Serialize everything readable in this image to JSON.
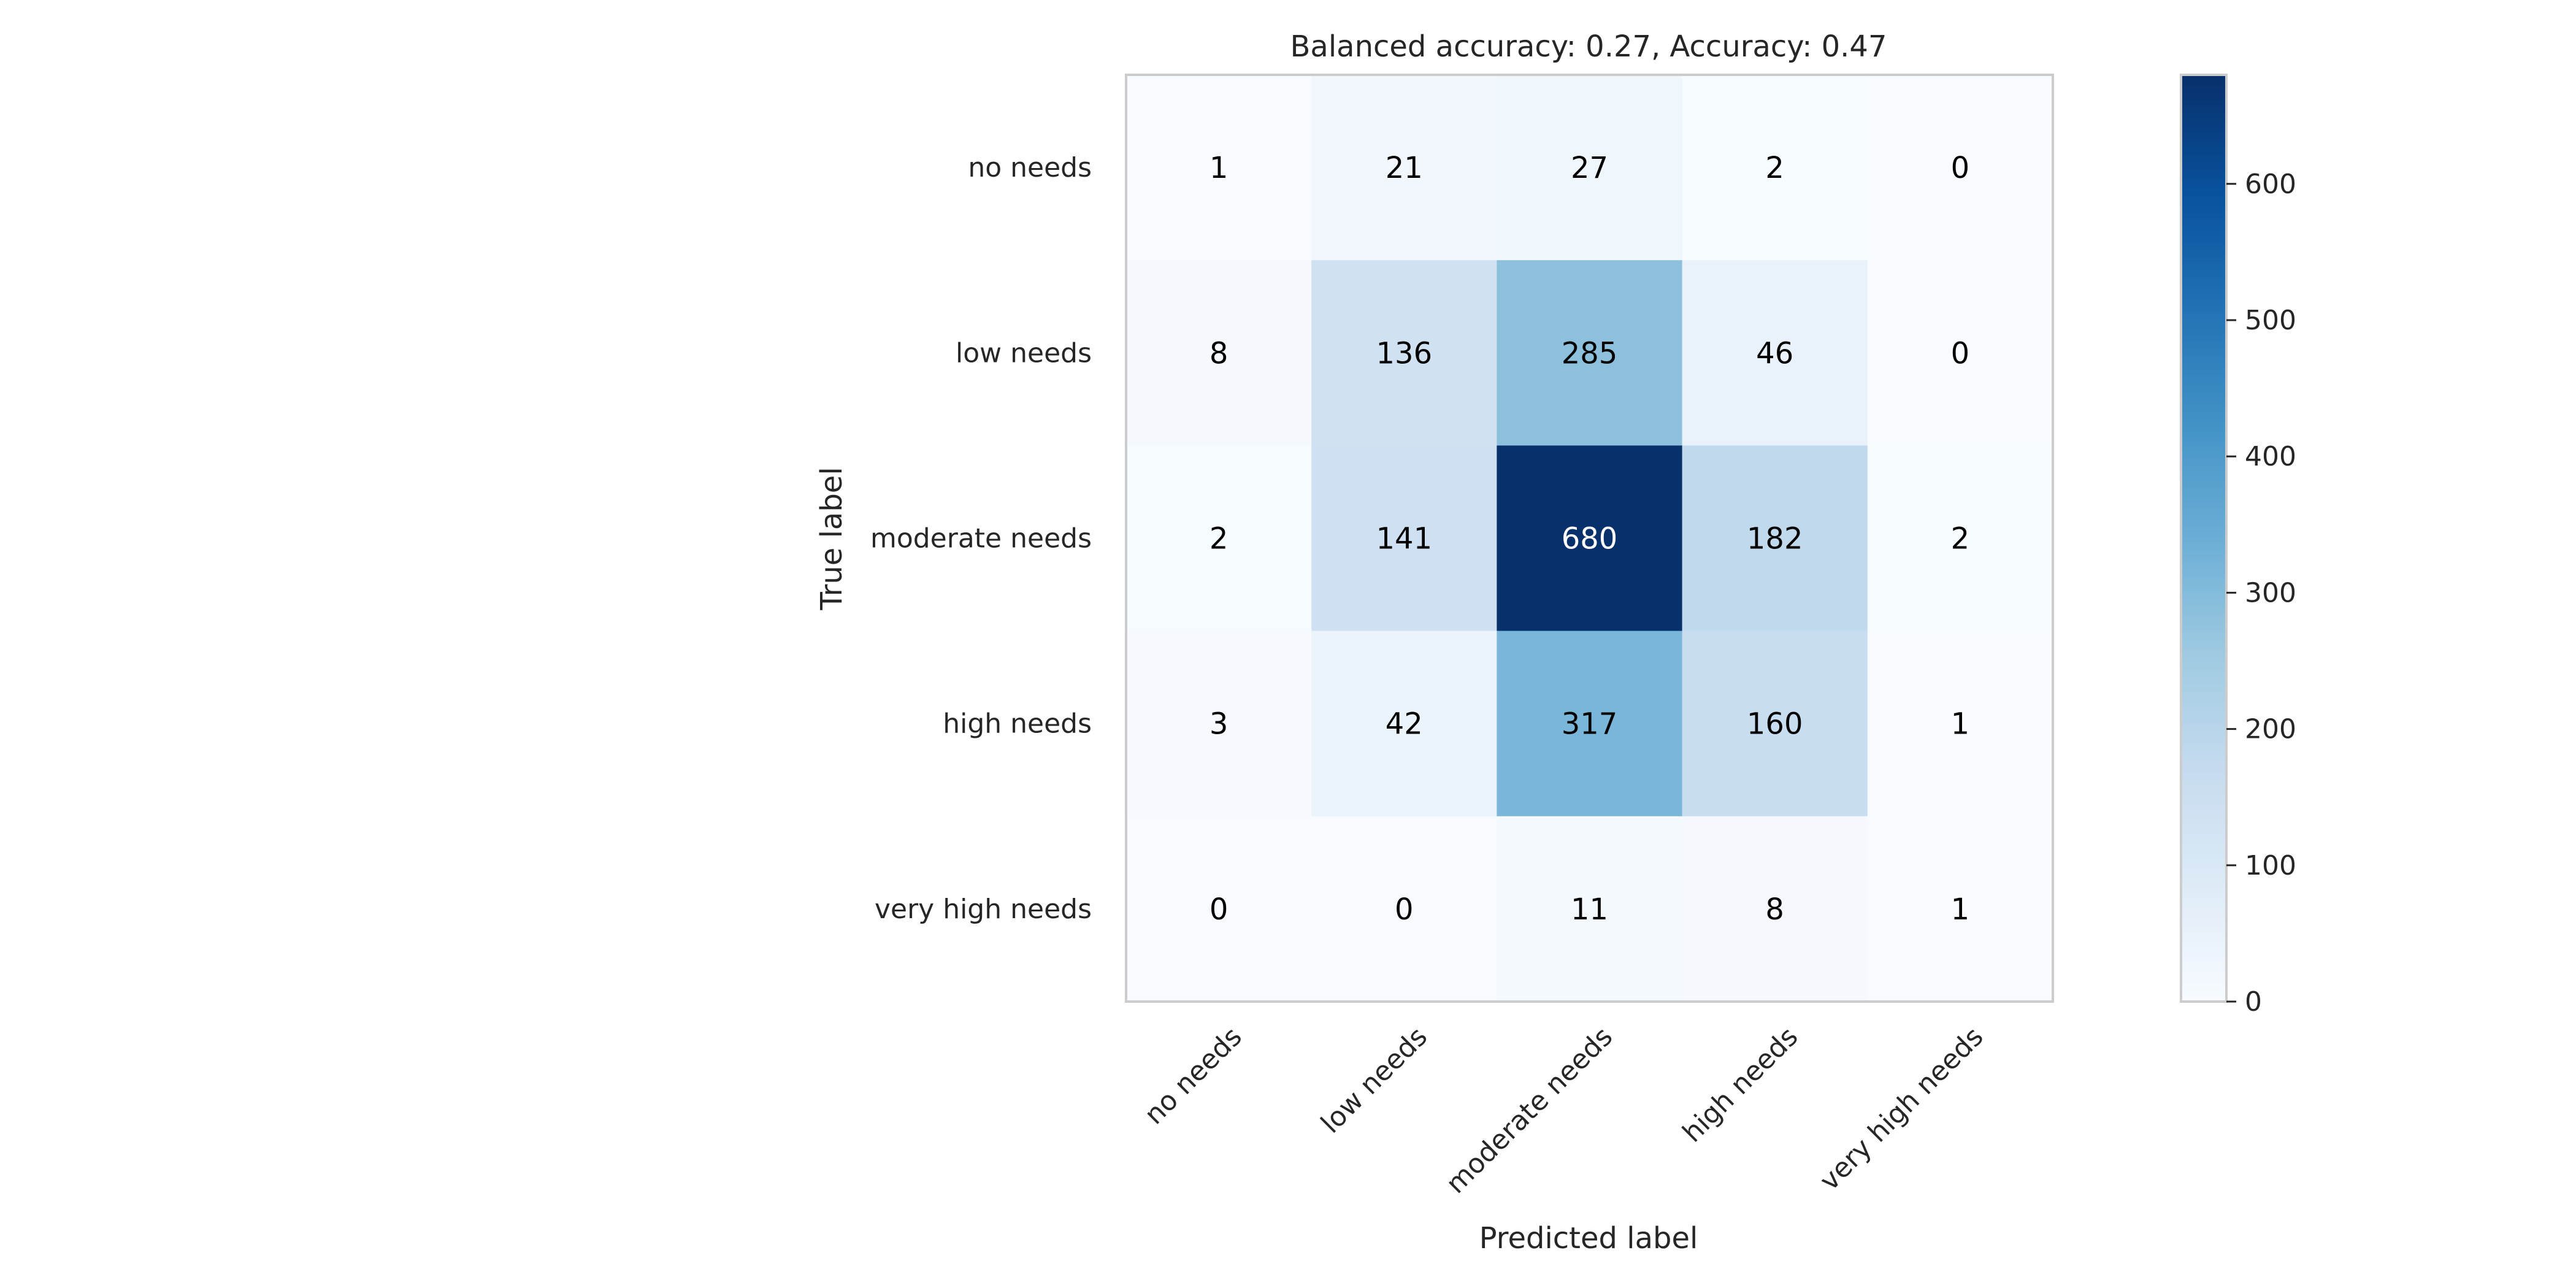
{
  "chart_data": {
    "type": "heatmap",
    "title": "Balanced accuracy: 0.27, Accuracy: 0.47",
    "xlabel": "Predicted label",
    "ylabel": "True label",
    "row_labels": [
      "no needs",
      "low needs",
      "moderate needs",
      "high needs",
      "very high needs"
    ],
    "col_labels": [
      "no needs",
      "low needs",
      "moderate needs",
      "high needs",
      "very high needs"
    ],
    "values": [
      [
        1,
        21,
        27,
        2,
        0
      ],
      [
        8,
        136,
        285,
        46,
        0
      ],
      [
        2,
        141,
        680,
        182,
        2
      ],
      [
        3,
        42,
        317,
        160,
        1
      ],
      [
        0,
        0,
        11,
        8,
        1
      ]
    ],
    "colorbar": {
      "ticks": [
        "0",
        "100",
        "200",
        "300",
        "400",
        "500",
        "600"
      ],
      "range": [
        0,
        680
      ]
    },
    "colormap": [
      "#f7fbff",
      "#deebf7",
      "#c6dbef",
      "#9ecae1",
      "#6baed6",
      "#4292c6",
      "#2171b5",
      "#08519c",
      "#08306b"
    ],
    "grid": false
  }
}
